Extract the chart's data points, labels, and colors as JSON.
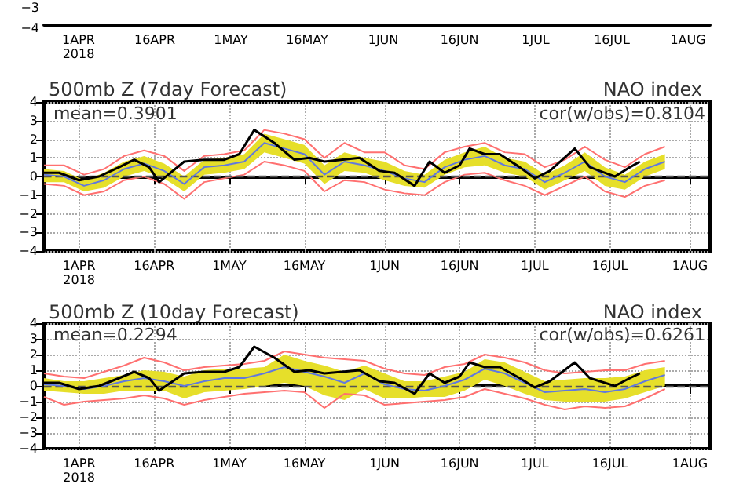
{
  "chart_data": [
    {
      "type": "other",
      "annotations": [
        "−3",
        "−4",
        "1APR\n2018",
        "16APR",
        "1MAY",
        "16MAY",
        "1JUN",
        "16JUN",
        "1JUL",
        "16JUL",
        "1AUG"
      ]
    },
    {
      "type": "line",
      "title": "500mb Z (7day Forecast)",
      "subtitle": "NAO index",
      "annotations": [
        "mean=0.3901",
        "cor(w/obs)=0.8104"
      ],
      "xlim": [
        "2018-03-25",
        "2018-08-05"
      ],
      "xticks": [
        {
          "value": "2018-04-01",
          "label": "1APR\n2018"
        },
        {
          "value": "2018-04-16",
          "label": "16APR"
        },
        {
          "value": "2018-05-01",
          "label": "1MAY"
        },
        {
          "value": "2018-05-16",
          "label": "16MAY"
        },
        {
          "value": "2018-06-01",
          "label": "1JUN"
        },
        {
          "value": "2018-06-16",
          "label": "16JUN"
        },
        {
          "value": "2018-07-01",
          "label": "1JUL"
        },
        {
          "value": "2018-07-16",
          "label": "16JUL"
        },
        {
          "value": "2018-08-01",
          "label": "1AUG"
        }
      ],
      "ylim": [
        -4,
        4
      ],
      "yticks": [
        -4,
        -3,
        -2,
        -1,
        0,
        1,
        2,
        3,
        4
      ],
      "grid": true,
      "marker": "none",
      "ref_lines": [
        {
          "axis": "y",
          "value": 0,
          "color": "#555555",
          "line_style": "dashed"
        }
      ],
      "x": [
        "2018-03-25",
        "2018-03-29",
        "2018-04-02",
        "2018-04-06",
        "2018-04-10",
        "2018-04-14",
        "2018-04-18",
        "2018-04-22",
        "2018-04-26",
        "2018-04-30",
        "2018-05-04",
        "2018-05-08",
        "2018-05-12",
        "2018-05-16",
        "2018-05-20",
        "2018-05-24",
        "2018-05-28",
        "2018-06-01",
        "2018-06-05",
        "2018-06-09",
        "2018-06-13",
        "2018-06-17",
        "2018-06-21",
        "2018-06-25",
        "2018-06-29",
        "2018-07-03",
        "2018-07-07",
        "2018-07-11",
        "2018-07-15",
        "2018-07-19",
        "2018-07-23",
        "2018-07-27"
      ],
      "series": [
        {
          "color": "#ff7070",
          "values": [
            0.6,
            0.6,
            0.1,
            0.4,
            1.1,
            1.4,
            1.1,
            0.3,
            1.1,
            1.2,
            1.4,
            2.5,
            2.3,
            2.0,
            1.0,
            1.8,
            1.3,
            1.3,
            0.6,
            0.4,
            1.3,
            1.6,
            1.8,
            1.3,
            1.2,
            0.5,
            0.9,
            1.6,
            0.9,
            0.5,
            1.2,
            1.6
          ]
        },
        {
          "color": "#ff7070",
          "values": [
            -0.4,
            -0.5,
            -1.0,
            -0.8,
            -0.2,
            0.0,
            -0.4,
            -1.2,
            -0.3,
            -0.1,
            0.1,
            0.8,
            0.6,
            0.3,
            -0.8,
            -0.2,
            -0.3,
            -0.7,
            -0.9,
            -1.0,
            -0.3,
            0.1,
            0.2,
            -0.2,
            -0.5,
            -1.0,
            -0.5,
            0.0,
            -0.8,
            -1.1,
            -0.5,
            -0.2
          ]
        },
        {
          "color": "#6078e0",
          "values": [
            0.1,
            0.0,
            -0.5,
            -0.2,
            0.4,
            0.7,
            0.3,
            -0.4,
            0.5,
            0.6,
            0.8,
            1.8,
            1.5,
            1.2,
            0.1,
            0.8,
            0.6,
            0.3,
            -0.1,
            -0.3,
            0.5,
            0.9,
            1.1,
            0.6,
            0.4,
            -0.3,
            0.2,
            0.8,
            0.0,
            -0.3,
            0.4,
            0.8
          ],
          "lower": [
            -0.3,
            -0.3,
            -0.8,
            -0.6,
            0.0,
            0.3,
            -0.1,
            -0.8,
            0.1,
            0.2,
            0.4,
            1.3,
            1.0,
            0.7,
            -0.4,
            0.3,
            0.2,
            -0.2,
            -0.5,
            -0.6,
            0.1,
            0.5,
            0.6,
            0.2,
            0.0,
            -0.7,
            -0.2,
            0.3,
            -0.5,
            -0.7,
            0.0,
            0.4
          ],
          "upper": [
            0.4,
            0.3,
            -0.2,
            0.2,
            0.8,
            1.1,
            0.7,
            0.0,
            0.9,
            1.0,
            1.2,
            2.3,
            2.0,
            1.7,
            0.6,
            1.3,
            1.0,
            0.8,
            0.3,
            0.1,
            0.9,
            1.3,
            1.6,
            1.0,
            0.8,
            0.1,
            0.6,
            1.3,
            0.5,
            0.1,
            0.8,
            1.2
          ]
        },
        {
          "color": "#000000",
          "x": [
            "2018-03-25",
            "2018-03-28",
            "2018-04-01",
            "2018-04-05",
            "2018-04-09",
            "2018-04-12",
            "2018-04-15",
            "2018-04-17",
            "2018-04-22",
            "2018-04-26",
            "2018-04-30",
            "2018-05-03",
            "2018-05-06",
            "2018-05-10",
            "2018-05-14",
            "2018-05-17",
            "2018-05-20",
            "2018-05-27",
            "2018-05-31",
            "2018-06-03",
            "2018-06-07",
            "2018-06-10",
            "2018-06-13",
            "2018-06-16",
            "2018-06-18",
            "2018-06-21",
            "2018-06-24",
            "2018-06-28",
            "2018-07-01",
            "2018-07-04",
            "2018-07-09",
            "2018-07-12",
            "2018-07-17",
            "2018-07-20",
            "2018-07-22"
          ],
          "values": [
            0.2,
            0.2,
            -0.2,
            0.0,
            0.5,
            0.9,
            0.5,
            -0.3,
            0.8,
            0.9,
            0.9,
            1.2,
            2.5,
            1.8,
            0.9,
            1.0,
            0.8,
            1.0,
            0.3,
            0.2,
            -0.5,
            0.8,
            0.2,
            0.6,
            1.5,
            1.2,
            1.2,
            0.5,
            -0.1,
            0.3,
            1.5,
            0.5,
            0.0,
            0.5,
            0.8
          ]
        }
      ]
    },
    {
      "type": "line",
      "title": "500mb Z (10day Forecast)",
      "subtitle": "NAO index",
      "annotations": [
        "mean=0.2294",
        "cor(w/obs)=0.6261"
      ],
      "xlim": [
        "2018-03-25",
        "2018-08-05"
      ],
      "xticks": [
        {
          "value": "2018-04-01",
          "label": "1APR\n2018"
        },
        {
          "value": "2018-04-16",
          "label": "16APR"
        },
        {
          "value": "2018-05-01",
          "label": "1MAY"
        },
        {
          "value": "2018-05-16",
          "label": "16MAY"
        },
        {
          "value": "2018-06-01",
          "label": "1JUN"
        },
        {
          "value": "2018-06-16",
          "label": "16JUN"
        },
        {
          "value": "2018-07-01",
          "label": "1JUL"
        },
        {
          "value": "2018-07-16",
          "label": "16JUL"
        },
        {
          "value": "2018-08-01",
          "label": "1AUG"
        }
      ],
      "ylim": [
        -4,
        4
      ],
      "yticks": [
        -4,
        -3,
        -2,
        -1,
        0,
        1,
        2,
        3,
        4
      ],
      "grid": true,
      "marker": "none",
      "ref_lines": [
        {
          "axis": "y",
          "value": 0,
          "color": "#555555",
          "line_style": "dashed"
        }
      ],
      "x": [
        "2018-03-25",
        "2018-03-29",
        "2018-04-02",
        "2018-04-06",
        "2018-04-10",
        "2018-04-14",
        "2018-04-18",
        "2018-04-22",
        "2018-04-26",
        "2018-04-30",
        "2018-05-04",
        "2018-05-08",
        "2018-05-12",
        "2018-05-16",
        "2018-05-20",
        "2018-05-24",
        "2018-05-28",
        "2018-06-01",
        "2018-06-05",
        "2018-06-09",
        "2018-06-13",
        "2018-06-17",
        "2018-06-21",
        "2018-06-25",
        "2018-06-29",
        "2018-07-03",
        "2018-07-07",
        "2018-07-11",
        "2018-07-15",
        "2018-07-19",
        "2018-07-23",
        "2018-07-27"
      ],
      "series": [
        {
          "color": "#ff7070",
          "values": [
            0.8,
            0.6,
            0.5,
            0.9,
            1.3,
            1.8,
            1.5,
            1.0,
            1.2,
            1.3,
            1.4,
            1.6,
            2.2,
            2.0,
            1.8,
            1.7,
            1.6,
            1.1,
            0.8,
            0.7,
            1.2,
            1.4,
            2.0,
            1.8,
            1.5,
            1.0,
            0.8,
            0.9,
            1.0,
            1.0,
            1.4,
            1.6
          ]
        },
        {
          "color": "#ff7070",
          "values": [
            -0.7,
            -1.2,
            -1.0,
            -0.9,
            -0.8,
            -0.6,
            -0.8,
            -1.2,
            -0.9,
            -0.7,
            -0.5,
            -0.4,
            -0.3,
            -0.4,
            -1.4,
            -0.5,
            -0.6,
            -1.2,
            -1.1,
            -1.0,
            -0.9,
            -0.7,
            -0.2,
            -0.5,
            -0.8,
            -1.2,
            -1.5,
            -1.3,
            -1.4,
            -1.3,
            -0.8,
            -0.2
          ]
        },
        {
          "color": "#6078e0",
          "values": [
            0.1,
            0.0,
            -0.2,
            0.0,
            0.3,
            0.5,
            0.3,
            0.0,
            0.3,
            0.5,
            0.5,
            0.8,
            1.2,
            0.9,
            0.6,
            0.2,
            0.8,
            0.1,
            -0.2,
            -0.3,
            0.0,
            0.4,
            1.1,
            0.8,
            0.2,
            -0.4,
            -0.3,
            -0.2,
            -0.4,
            -0.2,
            0.3,
            0.7
          ],
          "lower": [
            -0.3,
            -0.4,
            -0.5,
            -0.5,
            -0.3,
            -0.3,
            -0.3,
            -0.8,
            -0.4,
            -0.3,
            -0.2,
            0.0,
            0.2,
            0.0,
            -0.6,
            -0.9,
            -0.2,
            -0.8,
            -0.8,
            -0.7,
            -0.7,
            -0.3,
            0.4,
            0.0,
            -0.5,
            -0.9,
            -1.0,
            -1.0,
            -1.0,
            -0.8,
            -0.4,
            0.0
          ],
          "upper": [
            0.5,
            0.3,
            0.3,
            0.5,
            0.7,
            1.0,
            0.9,
            0.6,
            1.0,
            1.1,
            1.1,
            1.2,
            2.0,
            1.6,
            1.3,
            0.9,
            1.3,
            0.8,
            0.3,
            0.3,
            0.6,
            0.9,
            1.7,
            1.5,
            0.9,
            0.3,
            0.4,
            0.5,
            0.5,
            0.6,
            1.0,
            1.2
          ]
        },
        {
          "color": "#000000",
          "x": [
            "2018-03-25",
            "2018-03-28",
            "2018-04-01",
            "2018-04-05",
            "2018-04-09",
            "2018-04-12",
            "2018-04-15",
            "2018-04-17",
            "2018-04-22",
            "2018-04-26",
            "2018-04-30",
            "2018-05-03",
            "2018-05-06",
            "2018-05-10",
            "2018-05-14",
            "2018-05-17",
            "2018-05-20",
            "2018-05-27",
            "2018-05-31",
            "2018-06-03",
            "2018-06-07",
            "2018-06-10",
            "2018-06-13",
            "2018-06-16",
            "2018-06-18",
            "2018-06-21",
            "2018-06-24",
            "2018-06-28",
            "2018-07-01",
            "2018-07-04",
            "2018-07-09",
            "2018-07-12",
            "2018-07-17",
            "2018-07-20",
            "2018-07-22"
          ],
          "values": [
            0.2,
            0.2,
            -0.2,
            0.0,
            0.5,
            0.9,
            0.5,
            -0.3,
            0.8,
            0.9,
            0.9,
            1.2,
            2.5,
            1.8,
            0.9,
            1.0,
            0.8,
            1.0,
            0.3,
            0.2,
            -0.5,
            0.8,
            0.2,
            0.6,
            1.5,
            1.2,
            1.2,
            0.5,
            -0.1,
            0.3,
            1.5,
            0.5,
            0.0,
            0.5,
            0.8
          ]
        }
      ]
    }
  ]
}
